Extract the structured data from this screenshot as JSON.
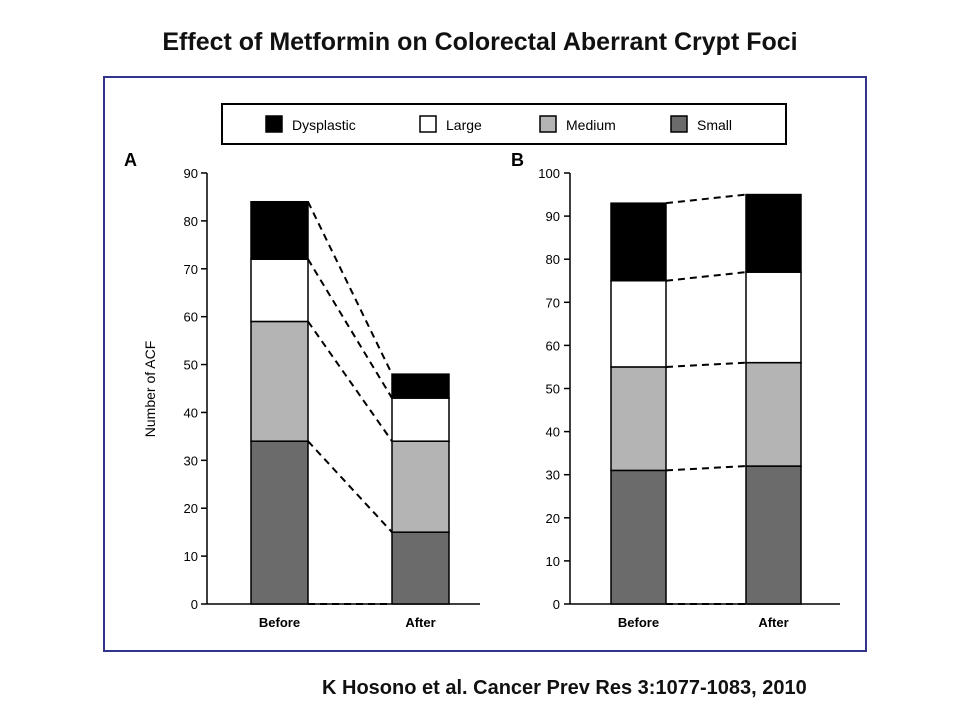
{
  "slide": {
    "title": "Effect of Metformin on Colorectal Aberrant Crypt Foci",
    "citation": "K Hosono  et al. Cancer Prev Res 3:1077-1083, 2010"
  },
  "legend": {
    "placement": "top",
    "entries": [
      {
        "label": "Dysplastic",
        "color": "#000000"
      },
      {
        "label": "Large",
        "color": "#ffffff"
      },
      {
        "label": "Medium",
        "color": "#b4b4b4"
      },
      {
        "label": "Small",
        "color": "#6b6b6b"
      }
    ]
  },
  "chart_data": [
    {
      "panel_label": "A",
      "type": "bar",
      "stacked": true,
      "ylabel": "Number of ACF",
      "ylim": [
        0,
        90
      ],
      "yticks": [
        0,
        10,
        20,
        30,
        40,
        50,
        60,
        70,
        80,
        90
      ],
      "categories": [
        "Before",
        "After"
      ],
      "series": [
        {
          "name": "Small",
          "values": [
            34,
            15
          ]
        },
        {
          "name": "Medium",
          "values": [
            25,
            19
          ]
        },
        {
          "name": "Large",
          "values": [
            13,
            9
          ]
        },
        {
          "name": "Dysplastic",
          "values": [
            12,
            5
          ]
        }
      ]
    },
    {
      "panel_label": "B",
      "type": "bar",
      "stacked": true,
      "ylabel": "",
      "ylim": [
        0,
        100
      ],
      "yticks": [
        0,
        10,
        20,
        30,
        40,
        50,
        60,
        70,
        80,
        90,
        100
      ],
      "categories": [
        "Before",
        "After"
      ],
      "series": [
        {
          "name": "Small",
          "values": [
            31,
            32
          ]
        },
        {
          "name": "Medium",
          "values": [
            24,
            24
          ]
        },
        {
          "name": "Large",
          "values": [
            20,
            21
          ]
        },
        {
          "name": "Dysplastic",
          "values": [
            18,
            18
          ]
        }
      ]
    }
  ]
}
